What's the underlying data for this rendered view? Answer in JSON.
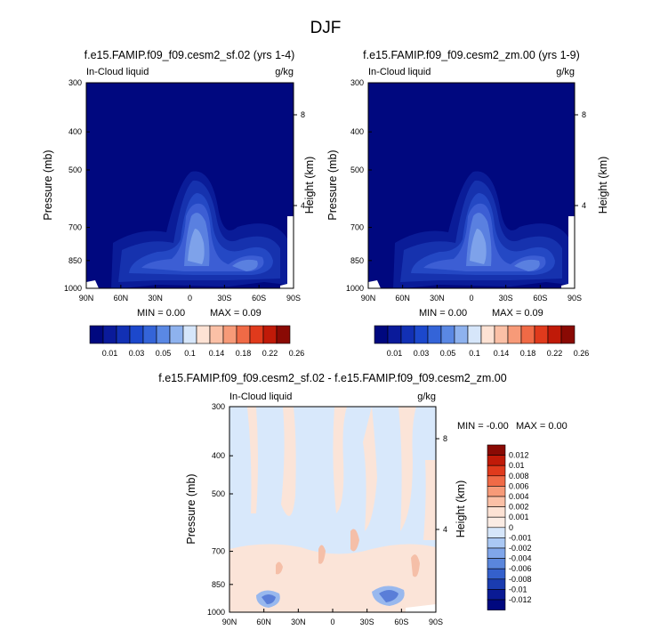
{
  "page": {
    "title": "DJF"
  },
  "colors": {
    "background_field": "#00087f",
    "contour_fill": "#3046c8",
    "diff_positive": "#fbd3c4",
    "diff_negative": "#cfe3fb"
  },
  "chart_data": [
    {
      "type": "heatmap",
      "title": "f.e15.FAMIP.f09_f09.cesm2_sf.02 (yrs 1-4)",
      "left_label": "In-Cloud liquid",
      "right_label": "g/kg",
      "xlabel": "",
      "ylabel": "Pressure (mb)",
      "y2label": "Height (km)",
      "x_ticks": [
        "90N",
        "60N",
        "30N",
        "0",
        "30S",
        "60S",
        "90S"
      ],
      "y_ticks": [
        "300",
        "400",
        "500",
        "700",
        "850",
        "1000"
      ],
      "y2_ticks": [
        "8",
        "4"
      ],
      "min_text": "MIN =   0.00",
      "max_text": "MAX =   0.09",
      "colorbar_labels": [
        "0.01",
        "0.03",
        "0.05",
        "0.1",
        "0.14",
        "0.18",
        "0.22",
        "0.26"
      ],
      "colorbar_colors": [
        "#00087f",
        "#0a1a9a",
        "#1230b4",
        "#1c48cc",
        "#3464d8",
        "#5a88e4",
        "#8eb2ee",
        "#d6e6fa",
        "#fde2d4",
        "#fbc0a6",
        "#f79a78",
        "#f06a46",
        "#e03a1c",
        "#c01a08",
        "#8a0a04"
      ]
    },
    {
      "type": "heatmap",
      "title": "f.e15.FAMIP.f09_f09.cesm2_zm.00 (yrs 1-9)",
      "left_label": "In-Cloud liquid",
      "right_label": "g/kg",
      "xlabel": "",
      "ylabel": "Pressure (mb)",
      "y2label": "Height (km)",
      "x_ticks": [
        "90N",
        "60N",
        "30N",
        "0",
        "30S",
        "60S",
        "90S"
      ],
      "y_ticks": [
        "300",
        "400",
        "500",
        "700",
        "850",
        "1000"
      ],
      "y2_ticks": [
        "8",
        "4"
      ],
      "min_text": "MIN =   0.00",
      "max_text": "MAX =   0.09",
      "colorbar_labels": [
        "0.01",
        "0.03",
        "0.05",
        "0.1",
        "0.14",
        "0.18",
        "0.22",
        "0.26"
      ],
      "colorbar_colors": [
        "#00087f",
        "#0a1a9a",
        "#1230b4",
        "#1c48cc",
        "#3464d8",
        "#5a88e4",
        "#8eb2ee",
        "#d6e6fa",
        "#fde2d4",
        "#fbc0a6",
        "#f79a78",
        "#f06a46",
        "#e03a1c",
        "#c01a08",
        "#8a0a04"
      ]
    },
    {
      "type": "heatmap",
      "title": "f.e15.FAMIP.f09_f09.cesm2_sf.02 - f.e15.FAMIP.f09_f09.cesm2_zm.00",
      "left_label": "In-Cloud liquid",
      "right_label": "g/kg",
      "xlabel": "",
      "ylabel": "Pressure (mb)",
      "y2label": "Height (km)",
      "x_ticks": [
        "90N",
        "60N",
        "30N",
        "0",
        "30S",
        "60S",
        "90S"
      ],
      "y_ticks": [
        "300",
        "400",
        "500",
        "700",
        "850",
        "1000"
      ],
      "y2_ticks": [
        "8",
        "4"
      ],
      "min_text": "MIN =  -0.00",
      "max_text": "MAX =   0.00",
      "colorbar_labels": [
        "0.012",
        "0.01",
        "0.008",
        "0.006",
        "0.004",
        "0.002",
        "0.001",
        "0",
        "-0.001",
        "-0.002",
        "-0.004",
        "-0.006",
        "-0.008",
        "-0.01",
        "-0.012"
      ],
      "colorbar_colors": [
        "#8a0a04",
        "#c01a08",
        "#e03a1c",
        "#f06a46",
        "#f79a78",
        "#fbc0a6",
        "#fde2d4",
        "#fbece4",
        "#d6e6fa",
        "#aac8f4",
        "#80a6ea",
        "#5a86dc",
        "#3460cc",
        "#1a3cb0",
        "#0a1a94",
        "#00087f"
      ]
    }
  ]
}
